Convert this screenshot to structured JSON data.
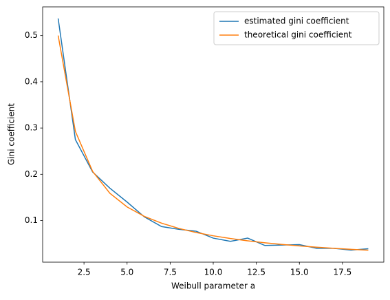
{
  "chart_data": {
    "type": "line",
    "xlabel": "Weibull parameter a",
    "ylabel": "Gini coefficient",
    "x": [
      1,
      2,
      3,
      4,
      5,
      6,
      7,
      8,
      9,
      10,
      11,
      12,
      13,
      14,
      15,
      16,
      17,
      18,
      19
    ],
    "series": [
      {
        "name": "estimated gini coefficient",
        "color": "#1f77b4",
        "values": [
          0.537,
          0.275,
          0.205,
          0.17,
          0.14,
          0.108,
          0.087,
          0.081,
          0.077,
          0.062,
          0.055,
          0.062,
          0.046,
          0.047,
          0.048,
          0.04,
          0.04,
          0.036,
          0.039
        ]
      },
      {
        "name": "theoretical gini coefficient",
        "color": "#ff7f0e",
        "values": [
          0.5,
          0.2929,
          0.2063,
          0.1591,
          0.1294,
          0.1091,
          0.0943,
          0.083,
          0.0741,
          0.067,
          0.0611,
          0.0561,
          0.0519,
          0.0483,
          0.0452,
          0.0424,
          0.04,
          0.0378,
          0.0358
        ]
      }
    ],
    "xlim": [
      0.1,
      19.9
    ],
    "xticks": [
      2.5,
      {
        "value": 5,
        "label": "5.0"
      },
      7.5,
      {
        "value": 10,
        "label": "10.0"
      },
      12.5,
      {
        "value": 15,
        "label": "15.0"
      },
      17.5
    ],
    "ylim": [
      0.01,
      0.562
    ],
    "yticks": [
      0.1,
      0.2,
      0.3,
      0.4,
      0.5
    ],
    "legend": "upper right",
    "grid": false
  }
}
